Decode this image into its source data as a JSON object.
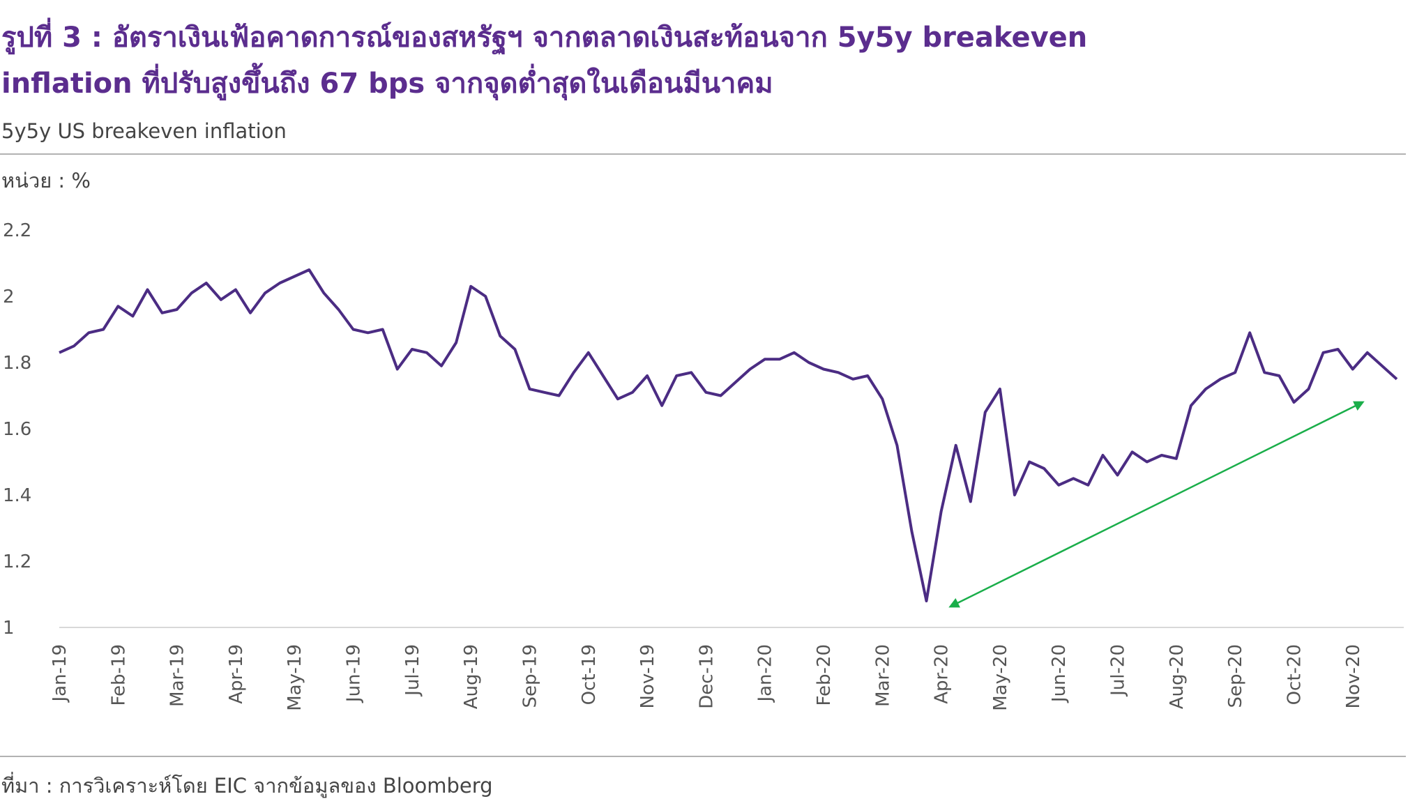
{
  "chart_data": {
    "type": "line",
    "title": [
      "รูปที่ 3 : อัตราเงินเฟ้อคาดการณ์ของสหรัฐฯ จากตลาดเงินสะท้อนจาก 5y5y breakeven",
      "inflation ที่ปรับสูงขึ้นถึง 67 bps จากจุดต่ำสุดในเดือนมีนาคม"
    ],
    "subtitle": "5y5y US breakeven inflation",
    "unit_label": "หน่วย : %",
    "source": "ที่มา : การวิเคราะห์โดย EIC จากข้อมูลของ Bloomberg",
    "categories": [
      "Jan-19",
      null,
      null,
      null,
      "Feb-19",
      null,
      null,
      null,
      "Mar-19",
      null,
      null,
      null,
      "Apr-19",
      null,
      null,
      null,
      "May-19",
      null,
      null,
      null,
      "Jun-19",
      null,
      null,
      null,
      "Jul-19",
      null,
      null,
      null,
      "Aug-19",
      null,
      null,
      null,
      "Sep-19",
      null,
      null,
      null,
      "Oct-19",
      null,
      null,
      null,
      "Nov-19",
      null,
      null,
      null,
      "Dec-19",
      null,
      null,
      null,
      "Jan-20",
      null,
      null,
      null,
      "Feb-20",
      null,
      null,
      null,
      "Mar-20",
      null,
      null,
      null,
      "Apr-20",
      null,
      null,
      null,
      "May-20",
      null,
      null,
      null,
      "Jun-20",
      null,
      null,
      null,
      "Jul-20",
      null,
      null,
      null,
      "Aug-20",
      null,
      null,
      null,
      "Sep-20",
      null,
      null,
      null,
      "Oct-20",
      null,
      null,
      null,
      "Nov-20",
      null,
      null,
      null
    ],
    "values": [
      1.83,
      1.85,
      1.89,
      1.9,
      1.97,
      1.94,
      2.02,
      1.95,
      1.96,
      2.01,
      2.04,
      1.99,
      2.02,
      1.95,
      2.01,
      2.04,
      2.06,
      2.08,
      2.01,
      1.96,
      1.9,
      1.89,
      1.9,
      1.78,
      1.84,
      1.83,
      1.79,
      1.86,
      2.03,
      2.0,
      1.88,
      1.84,
      1.72,
      1.71,
      1.7,
      1.77,
      1.83,
      1.76,
      1.69,
      1.71,
      1.76,
      1.67,
      1.76,
      1.77,
      1.71,
      1.7,
      1.74,
      1.78,
      1.81,
      1.81,
      1.83,
      1.8,
      1.78,
      1.77,
      1.75,
      1.76,
      1.69,
      1.55,
      1.29,
      1.08,
      1.35,
      1.55,
      1.38,
      1.65,
      1.72,
      1.4,
      1.5,
      1.48,
      1.43,
      1.45,
      1.43,
      1.52,
      1.46,
      1.53,
      1.5,
      1.52,
      1.51,
      1.67,
      1.72,
      1.75,
      1.77,
      1.89,
      1.77,
      1.76,
      1.68,
      1.72,
      1.83,
      1.84,
      1.78,
      1.83,
      1.79,
      1.75
    ],
    "color": "#4b2c83",
    "ylim": [
      1,
      2.2
    ],
    "yticks": [
      1,
      1.2,
      1.4,
      1.6,
      1.8,
      2,
      2.2
    ],
    "grid": false
  }
}
